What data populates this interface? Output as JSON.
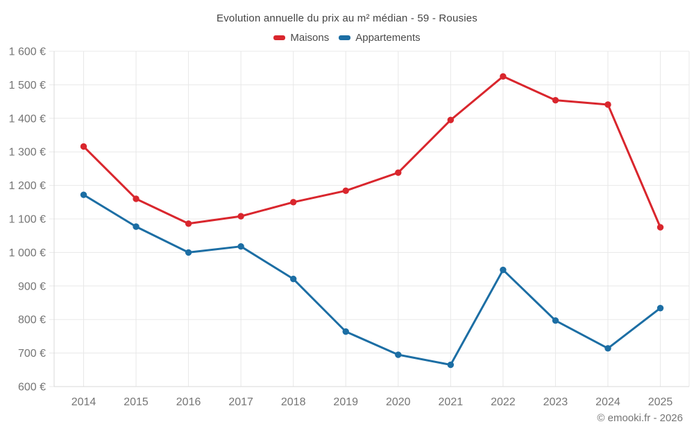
{
  "page": {
    "title": "Evolution annuelle du prix au m² médian - 59 - Rousies"
  },
  "footer": {
    "copyright": "© emooki.fr - 2026"
  },
  "colors": {
    "maisons": "#d9262d",
    "appartements": "#1c6ea4",
    "grid": "#e8e8e8",
    "axis": "#d9d9d9",
    "axis_text": "#757575",
    "title_text": "#444444"
  },
  "chart_data": {
    "type": "line",
    "title": "Evolution annuelle du prix au m² médian - 59 - Rousies",
    "x": [
      "2014",
      "2015",
      "2016",
      "2017",
      "2018",
      "2019",
      "2020",
      "2021",
      "2022",
      "2023",
      "2024",
      "2025"
    ],
    "series": [
      {
        "name": "Maisons",
        "color": "#d9262d",
        "values": [
          1316,
          1160,
          1086,
          1108,
          1150,
          1184,
          1238,
          1395,
          1525,
          1454,
          1441,
          1075
        ]
      },
      {
        "name": "Appartements",
        "color": "#1c6ea4",
        "values": [
          1172,
          1077,
          1000,
          1018,
          921,
          764,
          695,
          665,
          948,
          797,
          714,
          834
        ]
      }
    ],
    "ylim": [
      600,
      1600
    ],
    "y_step": 100,
    "y_tick_labels": [
      "1 600 €",
      "1 500 €",
      "1 400 €",
      "1 300 €",
      "1 200 €",
      "1 100 €",
      "1 000 €",
      "900 €",
      "800 €",
      "700 €",
      "600 €"
    ],
    "unit": "€",
    "grid": true,
    "legend_position": "top",
    "xlabel": "",
    "ylabel": ""
  }
}
